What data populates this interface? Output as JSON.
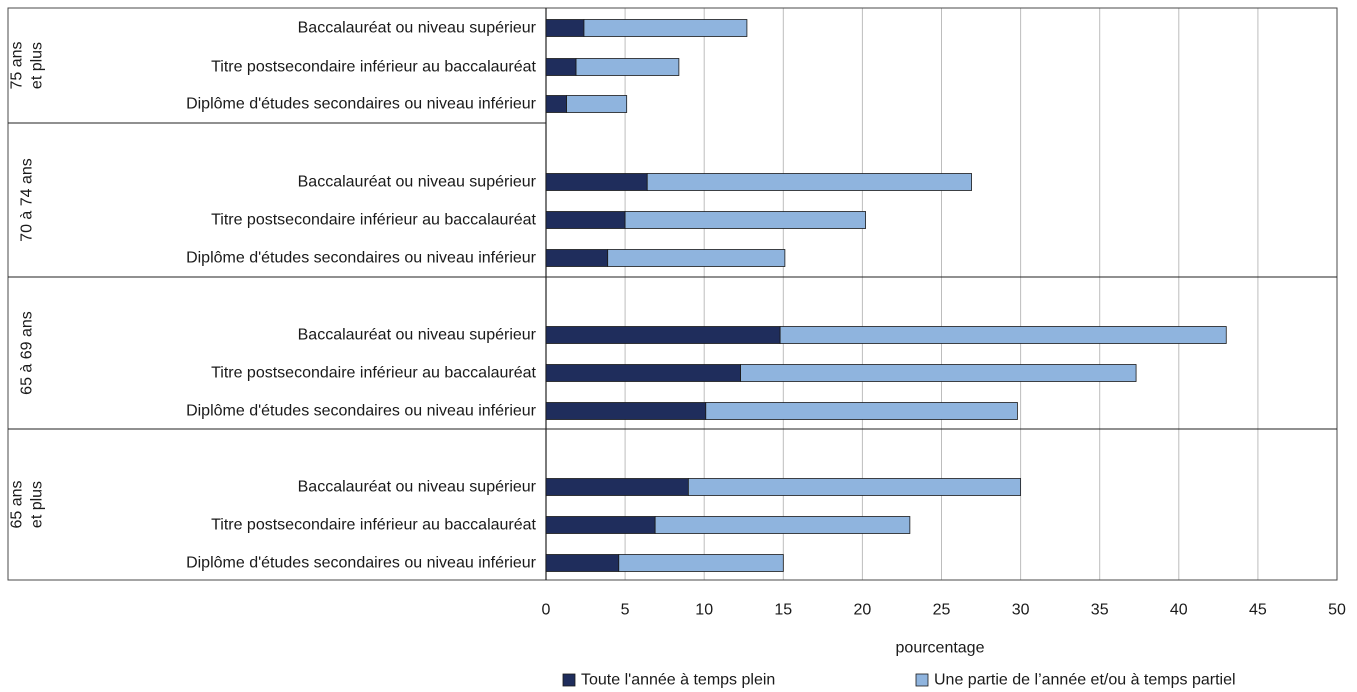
{
  "chart_data": {
    "type": "bar",
    "orientation": "horizontal",
    "stacked": true,
    "xlabel": "pourcentage",
    "xlim": [
      0,
      50
    ],
    "xticks": [
      0,
      5,
      10,
      15,
      20,
      25,
      30,
      35,
      40,
      45,
      50
    ],
    "grid": true,
    "legend_position": "bottom",
    "groups": [
      {
        "label": [
          "75 ans",
          "et plus"
        ],
        "categories": [
          "Baccalauréat ou niveau supérieur",
          "Titre postsecondaire inférieur au baccalauréat",
          "Diplôme d'études secondaires ou niveau inférieur"
        ]
      },
      {
        "label": [
          "70 à 74 ans"
        ],
        "categories": [
          "Baccalauréat ou niveau supérieur",
          "Titre postsecondaire inférieur au baccalauréat",
          "Diplôme d'études secondaires ou niveau inférieur"
        ]
      },
      {
        "label": [
          "65 à 69 ans"
        ],
        "categories": [
          "Baccalauréat ou niveau supérieur",
          "Titre postsecondaire inférieur au baccalauréat",
          "Diplôme d'études secondaires ou niveau inférieur"
        ]
      },
      {
        "label": [
          "65 ans",
          "et plus"
        ],
        "categories": [
          "Baccalauréat ou niveau supérieur",
          "Titre postsecondaire inférieur au baccalauréat",
          "Diplôme d'études secondaires ou niveau inférieur"
        ]
      }
    ],
    "series": [
      {
        "name": "Toute l'année à temps plein",
        "color": "#1f2d5c",
        "values": [
          [
            2.4,
            1.9,
            1.3
          ],
          [
            6.4,
            5.0,
            3.9
          ],
          [
            14.8,
            12.3,
            10.1
          ],
          [
            9.0,
            6.9,
            4.6
          ]
        ]
      },
      {
        "name": "Une partie de l’année et/ou à temps partiel",
        "color": "#8fb4de",
        "values": [
          [
            10.3,
            6.5,
            3.8
          ],
          [
            20.5,
            15.2,
            11.2
          ],
          [
            28.2,
            25.0,
            19.7
          ],
          [
            21.0,
            16.1,
            10.4
          ]
        ]
      }
    ]
  }
}
